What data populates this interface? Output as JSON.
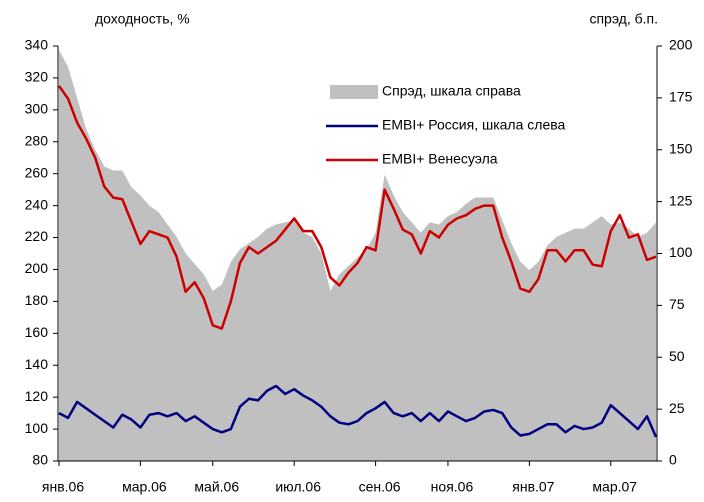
{
  "chart_data": {
    "type": "line",
    "axis_title_left": "доходность, %",
    "axis_title_right": "спрэд, б.п.",
    "categories": [
      "янв.06",
      null,
      null,
      null,
      null,
      null,
      null,
      null,
      null,
      "мар.06",
      null,
      null,
      null,
      null,
      null,
      null,
      null,
      "май.06",
      null,
      null,
      null,
      null,
      null,
      null,
      null,
      null,
      "июл.06",
      null,
      null,
      null,
      null,
      null,
      null,
      null,
      null,
      "сен.06",
      null,
      null,
      null,
      null,
      null,
      null,
      null,
      "ноя.06",
      null,
      null,
      null,
      null,
      null,
      null,
      null,
      null,
      "янв.07",
      null,
      null,
      null,
      null,
      null,
      null,
      null,
      null,
      "мар.07",
      null,
      null,
      null,
      null,
      null
    ],
    "series": [
      {
        "name": "Спрэд, шкала справа",
        "type": "area",
        "axis": "y2",
        "color": "#c0c0c0",
        "values": [
          198,
          190,
          175,
          160,
          150,
          142,
          140,
          140,
          132,
          128,
          123,
          120,
          114,
          108,
          100,
          95,
          90,
          82,
          85,
          96,
          102,
          105,
          108,
          112,
          114,
          115,
          116,
          110,
          108,
          100,
          82,
          90,
          94,
          98,
          102,
          110,
          138,
          128,
          120,
          115,
          110,
          115,
          114,
          118,
          120,
          124,
          127,
          127,
          127,
          116,
          105,
          96,
          92,
          96,
          104,
          108,
          110,
          112,
          112,
          115,
          118,
          114,
          115,
          112,
          108,
          110,
          115
        ]
      },
      {
        "name": "EMBI+ Россия, шкала слева",
        "type": "line",
        "color": "#000080",
        "values": [
          110,
          107,
          117,
          113,
          109,
          105,
          101,
          109,
          106,
          101,
          109,
          110,
          108,
          110,
          105,
          108,
          104,
          100,
          98,
          100,
          114,
          119,
          118,
          124,
          127,
          122,
          125,
          121,
          118,
          114,
          108,
          104,
          103,
          105,
          110,
          113,
          117,
          110,
          108,
          110,
          105,
          110,
          105,
          111,
          108,
          105,
          107,
          111,
          112,
          110,
          101,
          96,
          97,
          100,
          103,
          103,
          98,
          102,
          100,
          101,
          104,
          115,
          110,
          105,
          100,
          108,
          95
        ]
      },
      {
        "name": "EMBI+ Венесуэла",
        "type": "line",
        "color": "#cc0000",
        "values": [
          315,
          307,
          292,
          282,
          270,
          252,
          245,
          244,
          230,
          216,
          224,
          222,
          220,
          208,
          186,
          192,
          182,
          165,
          163,
          180,
          204,
          214,
          210,
          214,
          218,
          225,
          232,
          224,
          224,
          214,
          195,
          190,
          198,
          204,
          214,
          212,
          250,
          238,
          225,
          222,
          210,
          224,
          220,
          228,
          232,
          234,
          238,
          240,
          240,
          220,
          205,
          188,
          186,
          194,
          212,
          212,
          205,
          212,
          212,
          203,
          202,
          224,
          234,
          220,
          222,
          206,
          208
        ]
      }
    ],
    "ylim": [
      80,
      340
    ],
    "yticks": [
      80,
      100,
      120,
      140,
      160,
      180,
      200,
      220,
      240,
      260,
      280,
      300,
      320,
      340
    ],
    "y2lim": [
      0,
      200
    ],
    "y2ticks": [
      0,
      25,
      50,
      75,
      100,
      125,
      150,
      175,
      200
    ],
    "legend": "top-right"
  }
}
